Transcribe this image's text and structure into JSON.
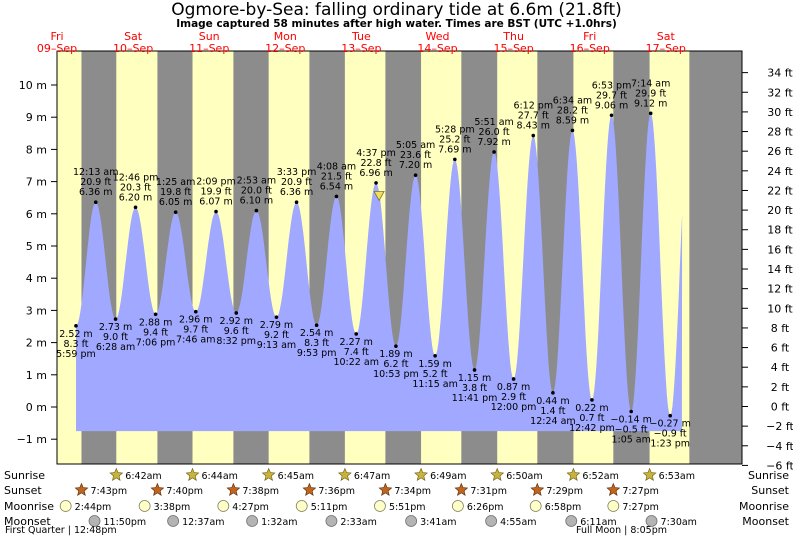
{
  "chart_data": {
    "type": "area",
    "title": "Ogmore-by-Sea: falling  ordinary tide at 6.6m (21.8ft)",
    "subtitle": "Image captured 58 minutes after high water. Times are BST (UTC +1.0hrs)",
    "ylabel_left_unit": "m",
    "ylabel_right_unit": "ft",
    "ylim": [
      -1.8,
      11.3
    ],
    "y_ticks_m": [
      {
        "v": -1,
        "label": "−1 m"
      },
      {
        "v": 0,
        "label": "0 m"
      },
      {
        "v": 1,
        "label": "1 m"
      },
      {
        "v": 2,
        "label": "2 m"
      },
      {
        "v": 3,
        "label": "3 m"
      },
      {
        "v": 4,
        "label": "4 m"
      },
      {
        "v": 5,
        "label": "5 m"
      },
      {
        "v": 6,
        "label": "6 m"
      },
      {
        "v": 7,
        "label": "7 m"
      },
      {
        "v": 8,
        "label": "8 m"
      },
      {
        "v": 9,
        "label": "9 m"
      },
      {
        "v": 10,
        "label": "10 m"
      }
    ],
    "y_ticks_ft": [
      {
        "v": -6,
        "label": "−6 ft"
      },
      {
        "v": -4,
        "label": "−4 ft"
      },
      {
        "v": -2,
        "label": "−2 ft"
      },
      {
        "v": 0,
        "label": "0 ft"
      },
      {
        "v": 2,
        "label": "2 ft"
      },
      {
        "v": 4,
        "label": "4 ft"
      },
      {
        "v": 6,
        "label": "6 ft"
      },
      {
        "v": 8,
        "label": "8 ft"
      },
      {
        "v": 10,
        "label": "10 ft"
      },
      {
        "v": 12,
        "label": "12 ft"
      },
      {
        "v": 14,
        "label": "14 ft"
      },
      {
        "v": 16,
        "label": "16 ft"
      },
      {
        "v": 18,
        "label": "18 ft"
      },
      {
        "v": 20,
        "label": "20 ft"
      },
      {
        "v": 22,
        "label": "22 ft"
      },
      {
        "v": 24,
        "label": "24 ft"
      },
      {
        "v": 26,
        "label": "26 ft"
      },
      {
        "v": 28,
        "label": "28 ft"
      },
      {
        "v": 30,
        "label": "30 ft"
      },
      {
        "v": 32,
        "label": "32 ft"
      },
      {
        "v": 34,
        "label": "34 ft"
      }
    ],
    "x_start": "2022-09-09T12:00",
    "x_end": "2022-09-17T24:00",
    "days": [
      {
        "weekday": "Fri",
        "date": "09–Sep"
      },
      {
        "weekday": "Sat",
        "date": "10–Sep"
      },
      {
        "weekday": "Sun",
        "date": "11–Sep"
      },
      {
        "weekday": "Mon",
        "date": "12–Sep"
      },
      {
        "weekday": "Tue",
        "date": "13–Sep"
      },
      {
        "weekday": "Wed",
        "date": "14–Sep"
      },
      {
        "weekday": "Thu",
        "date": "15–Sep"
      },
      {
        "weekday": "Fri",
        "date": "16–Sep"
      },
      {
        "weekday": "Sat",
        "date": "17–Sep"
      }
    ],
    "tides": [
      {
        "day": 0,
        "time": "17:59",
        "m": 2.52,
        "ft": "8.3 ft",
        "m_label": "2.52 m",
        "time_label": "5:59 pm",
        "type": "low"
      },
      {
        "day": 1,
        "time": "00:13",
        "m": 6.36,
        "ft": "20.9 ft",
        "m_label": "6.36 m",
        "time_label": "12:13 am",
        "type": "high"
      },
      {
        "day": 1,
        "time": "06:28",
        "m": 2.73,
        "ft": "9.0 ft",
        "m_label": "2.73 m",
        "time_label": "6:28 am",
        "type": "low"
      },
      {
        "day": 1,
        "time": "12:46",
        "m": 6.2,
        "ft": "20.3 ft",
        "m_label": "6.20 m",
        "time_label": "12:46 pm",
        "type": "high"
      },
      {
        "day": 1,
        "time": "19:06",
        "m": 2.88,
        "ft": "9.4 ft",
        "m_label": "2.88 m",
        "time_label": "7:06 pm",
        "type": "low"
      },
      {
        "day": 2,
        "time": "01:25",
        "m": 6.05,
        "ft": "19.8 ft",
        "m_label": "6.05 m",
        "time_label": "1:25 am",
        "type": "high"
      },
      {
        "day": 2,
        "time": "07:46",
        "m": 2.96,
        "ft": "9.7 ft",
        "m_label": "2.96 m",
        "time_label": "7:46 am",
        "type": "low"
      },
      {
        "day": 2,
        "time": "14:09",
        "m": 6.07,
        "ft": "19.9 ft",
        "m_label": "6.07 m",
        "time_label": "2:09 pm",
        "type": "high"
      },
      {
        "day": 2,
        "time": "20:32",
        "m": 2.92,
        "ft": "9.6 ft",
        "m_label": "2.92 m",
        "time_label": "8:32 pm",
        "type": "low"
      },
      {
        "day": 3,
        "time": "02:53",
        "m": 6.1,
        "ft": "20.0 ft",
        "m_label": "6.10 m",
        "time_label": "2:53 am",
        "type": "high"
      },
      {
        "day": 3,
        "time": "09:13",
        "m": 2.79,
        "ft": "9.2 ft",
        "m_label": "2.79 m",
        "time_label": "9:13 am",
        "type": "low"
      },
      {
        "day": 3,
        "time": "15:33",
        "m": 6.36,
        "ft": "20.9 ft",
        "m_label": "6.36 m",
        "time_label": "3:33 pm",
        "type": "high"
      },
      {
        "day": 3,
        "time": "21:53",
        "m": 2.54,
        "ft": "8.3 ft",
        "m_label": "2.54 m",
        "time_label": "9:53 pm",
        "type": "low"
      },
      {
        "day": 4,
        "time": "04:08",
        "m": 6.54,
        "ft": "21.5 ft",
        "m_label": "6.54 m",
        "time_label": "4:08 am",
        "type": "high"
      },
      {
        "day": 4,
        "time": "10:22",
        "m": 2.27,
        "ft": "7.4 ft",
        "m_label": "2.27 m",
        "time_label": "10:22 am",
        "type": "low"
      },
      {
        "day": 4,
        "time": "16:37",
        "m": 6.96,
        "ft": "22.8 ft",
        "m_label": "6.96 m",
        "time_label": "4:37 pm",
        "type": "high"
      },
      {
        "day": 4,
        "time": "22:53",
        "m": 1.89,
        "ft": "6.2 ft",
        "m_label": "1.89 m",
        "time_label": "10:53 pm",
        "type": "low"
      },
      {
        "day": 5,
        "time": "05:05",
        "m": 7.2,
        "ft": "23.6 ft",
        "m_label": "7.20 m",
        "time_label": "5:05 am",
        "type": "high"
      },
      {
        "day": 5,
        "time": "11:15",
        "m": 1.59,
        "ft": "5.2 ft",
        "m_label": "1.59 m",
        "time_label": "11:15 am",
        "type": "low"
      },
      {
        "day": 5,
        "time": "17:28",
        "m": 7.69,
        "ft": "25.2 ft",
        "m_label": "7.69 m",
        "time_label": "5:28 pm",
        "type": "high"
      },
      {
        "day": 5,
        "time": "23:41",
        "m": 1.15,
        "ft": "3.8 ft",
        "m_label": "1.15 m",
        "time_label": "11:41 pm",
        "type": "low"
      },
      {
        "day": 6,
        "time": "05:51",
        "m": 7.92,
        "ft": "26.0 ft",
        "m_label": "7.92 m",
        "time_label": "5:51 am",
        "type": "high"
      },
      {
        "day": 6,
        "time": "12:00",
        "m": 0.87,
        "ft": "2.9 ft",
        "m_label": "0.87 m",
        "time_label": "12:00 pm",
        "type": "low"
      },
      {
        "day": 6,
        "time": "18:12",
        "m": 8.43,
        "ft": "27.7 ft",
        "m_label": "8.43 m",
        "time_label": "6:12 pm",
        "type": "high"
      },
      {
        "day": 7,
        "time": "00:24",
        "m": 0.44,
        "ft": "1.4 ft",
        "m_label": "0.44 m",
        "time_label": "12:24 am",
        "type": "low"
      },
      {
        "day": 7,
        "time": "06:34",
        "m": 8.59,
        "ft": "28.2 ft",
        "m_label": "8.59 m",
        "time_label": "6:34 am",
        "type": "high"
      },
      {
        "day": 7,
        "time": "12:42",
        "m": 0.22,
        "ft": "0.7 ft",
        "m_label": "0.22 m",
        "time_label": "12:42 pm",
        "type": "low"
      },
      {
        "day": 7,
        "time": "18:53",
        "m": 9.06,
        "ft": "29.7 ft",
        "m_label": "9.06 m",
        "time_label": "6:53 pm",
        "type": "high"
      },
      {
        "day": 8,
        "time": "01:05",
        "m": -0.14,
        "ft": "−0.5 ft",
        "m_label": "−0.14 m",
        "time_label": "1:05 am",
        "type": "low"
      },
      {
        "day": 8,
        "time": "07:14",
        "m": 9.12,
        "ft": "29.9 ft",
        "m_label": "9.12 m",
        "time_label": "7:14 am",
        "type": "high"
      },
      {
        "day": 8,
        "time": "13:23",
        "m": -0.27,
        "ft": "−0.9 ft",
        "m_label": "−0.27 m",
        "time_label": "1:23 pm",
        "type": "low"
      }
    ],
    "curve_end": {
      "day": 8,
      "time": "17:05",
      "m": 7.0
    },
    "current_marker": {
      "day": 4,
      "time": "17:35",
      "m": 6.6
    },
    "nights": [
      {
        "set_day": 0,
        "set": "19:43",
        "rise_day": 1,
        "rise": "06:42"
      },
      {
        "set_day": 1,
        "set": "19:40",
        "rise_day": 2,
        "rise": "06:44"
      },
      {
        "set_day": 2,
        "set": "19:38",
        "rise_day": 3,
        "rise": "06:45"
      },
      {
        "set_day": 3,
        "set": "19:36",
        "rise_day": 4,
        "rise": "06:47"
      },
      {
        "set_day": 4,
        "set": "19:34",
        "rise_day": 5,
        "rise": "06:49"
      },
      {
        "set_day": 5,
        "set": "19:31",
        "rise_day": 6,
        "rise": "06:50"
      },
      {
        "set_day": 6,
        "set": "19:29",
        "rise_day": 7,
        "rise": "06:52"
      },
      {
        "set_day": 7,
        "set": "19:27",
        "rise_day": 8,
        "rise": "06:53"
      }
    ],
    "legend_rows": [
      "Sunrise",
      "Sunset",
      "Moonrise",
      "Moonset"
    ],
    "sunrise": [
      {
        "day": 1,
        "time": "06:42",
        "label": "6:42am"
      },
      {
        "day": 2,
        "time": "06:44",
        "label": "6:44am"
      },
      {
        "day": 3,
        "time": "06:45",
        "label": "6:45am"
      },
      {
        "day": 4,
        "time": "06:47",
        "label": "6:47am"
      },
      {
        "day": 5,
        "time": "06:49",
        "label": "6:49am"
      },
      {
        "day": 6,
        "time": "06:50",
        "label": "6:50am"
      },
      {
        "day": 7,
        "time": "06:52",
        "label": "6:52am"
      },
      {
        "day": 8,
        "time": "06:53",
        "label": "6:53am"
      }
    ],
    "sunset": [
      {
        "day": 0,
        "time": "19:43",
        "label": "7:43pm"
      },
      {
        "day": 1,
        "time": "19:40",
        "label": "7:40pm"
      },
      {
        "day": 2,
        "time": "19:38",
        "label": "7:38pm"
      },
      {
        "day": 3,
        "time": "19:36",
        "label": "7:36pm"
      },
      {
        "day": 4,
        "time": "19:34",
        "label": "7:34pm"
      },
      {
        "day": 5,
        "time": "19:31",
        "label": "7:31pm"
      },
      {
        "day": 6,
        "time": "19:29",
        "label": "7:29pm"
      },
      {
        "day": 7,
        "time": "19:27",
        "label": "7:27pm"
      }
    ],
    "moonrise": [
      {
        "day": 0,
        "time": "14:44",
        "label": "2:44pm"
      },
      {
        "day": 1,
        "time": "15:38",
        "label": "3:38pm"
      },
      {
        "day": 2,
        "time": "16:27",
        "label": "4:27pm"
      },
      {
        "day": 3,
        "time": "17:11",
        "label": "5:11pm"
      },
      {
        "day": 4,
        "time": "17:51",
        "label": "5:51pm"
      },
      {
        "day": 5,
        "time": "18:26",
        "label": "6:26pm"
      },
      {
        "day": 6,
        "time": "18:58",
        "label": "6:58pm"
      },
      {
        "day": 7,
        "time": "19:27",
        "label": "7:27pm"
      }
    ],
    "moonset": [
      {
        "day": 0,
        "time": "23:50",
        "label": "11:50pm"
      },
      {
        "day": 2,
        "time": "00:37",
        "label": "12:37am"
      },
      {
        "day": 3,
        "time": "01:32",
        "label": "1:32am"
      },
      {
        "day": 4,
        "time": "02:33",
        "label": "2:33am"
      },
      {
        "day": 5,
        "time": "03:41",
        "label": "3:41am"
      },
      {
        "day": 6,
        "time": "04:55",
        "label": "4:55am"
      },
      {
        "day": 7,
        "time": "06:11",
        "label": "6:11am"
      },
      {
        "day": 8,
        "time": "07:30",
        "label": "7:30am"
      }
    ],
    "moon_phases": [
      {
        "text": "First Quarter | 12:48pm",
        "align": "left"
      },
      {
        "text": "Full Moon | 8:05pm",
        "align": "right"
      }
    ],
    "colors": {
      "day_bg": "#ffffc0",
      "night_bg": "#8c8c8c",
      "tide_fill": "#a0a8ff",
      "day_label": "#ff0000",
      "marker": "#f0e060",
      "sun_star": "#c8b43c",
      "sunset_star": "#c0641e",
      "moonrise_fill": "#ffffc8",
      "moonset_fill": "#b4b4b4"
    }
  }
}
